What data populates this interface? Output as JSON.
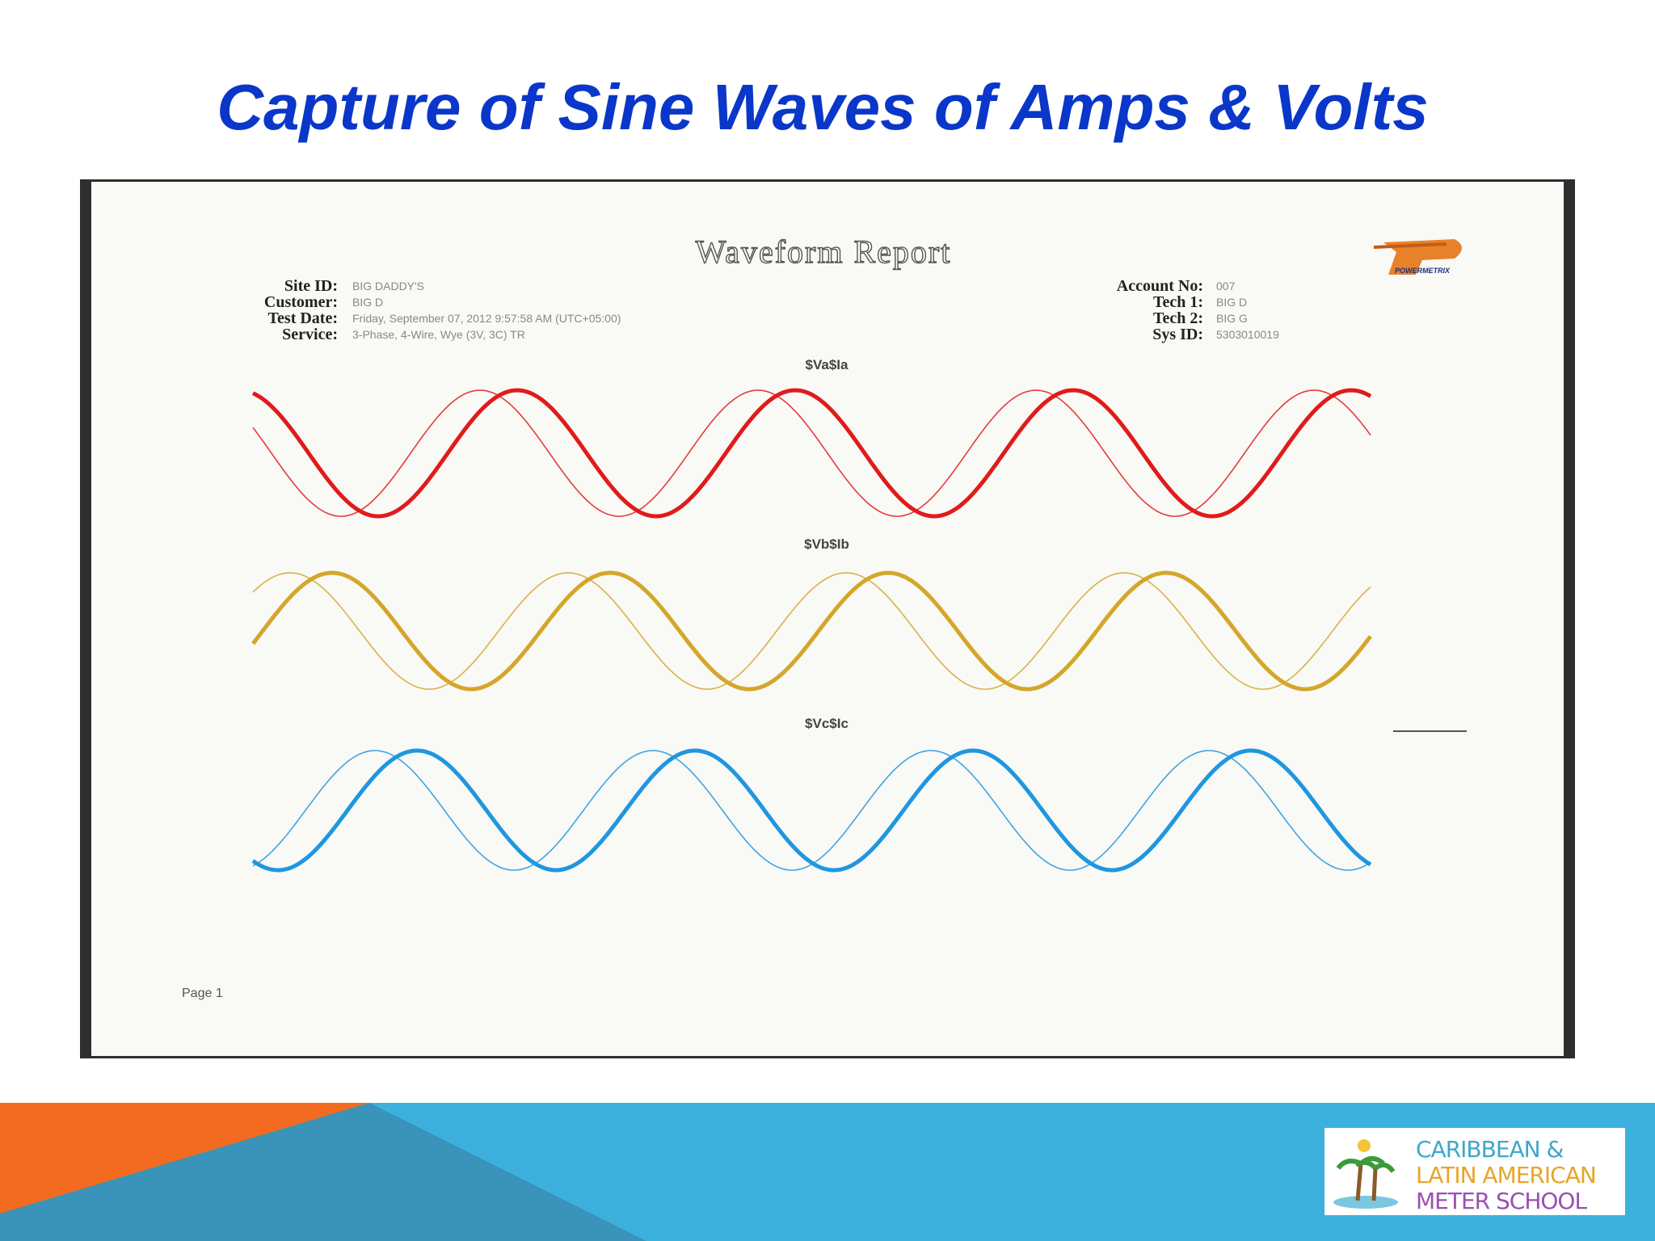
{
  "slide": {
    "title": "Capture of Sine Waves of Amps & Volts"
  },
  "report": {
    "title": "Waveform Report",
    "logo": "POWERMETRIX",
    "left_fields": [
      {
        "label": "Site ID:",
        "value": "BIG DADDY'S"
      },
      {
        "label": "Customer:",
        "value": "BIG D"
      },
      {
        "label": "Test Date:",
        "value": "Friday, September 07, 2012 9:57:58 AM (UTC+05:00)"
      },
      {
        "label": "Service:",
        "value": "3-Phase, 4-Wire, Wye (3V, 3C) TR"
      }
    ],
    "right_fields": [
      {
        "label": "Account No:",
        "value": "007"
      },
      {
        "label": "Tech 1:",
        "value": "BIG D"
      },
      {
        "label": "Tech 2:",
        "value": "BIG G"
      },
      {
        "label": "Sys ID:",
        "value": "5303010019"
      }
    ],
    "charts": [
      "$Va$Ia",
      "$Vb$Ib",
      "$Vc$Ic"
    ],
    "page": "Page 1"
  },
  "footer": {
    "school": [
      "CARIBBEAN &",
      "LATIN AMERICAN",
      "METER SCHOOL"
    ]
  }
}
